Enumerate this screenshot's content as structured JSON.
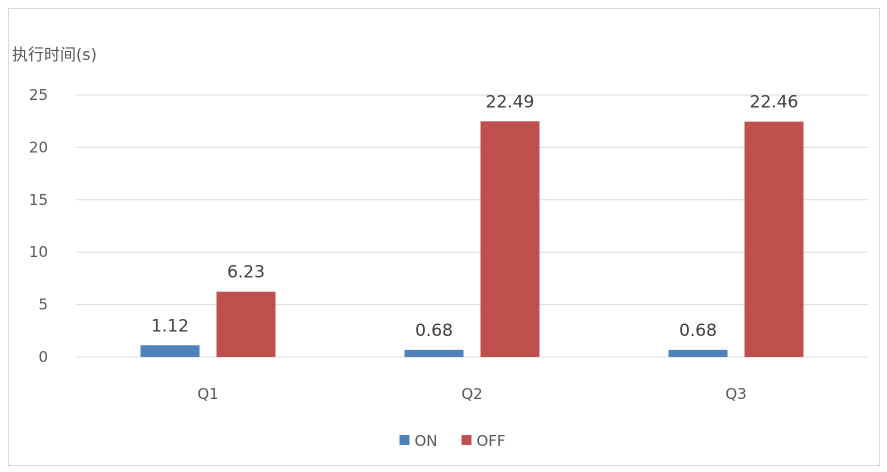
{
  "chart_data": {
    "type": "bar",
    "title": "",
    "ylabel": "执行时间(s)",
    "xlabel": "",
    "categories": [
      "Q1",
      "Q2",
      "Q3"
    ],
    "ylim": [
      0,
      25
    ],
    "yticks": [
      0,
      5,
      10,
      15,
      20,
      25
    ],
    "grid": true,
    "legend": "bottom-center",
    "series": [
      {
        "name": "ON",
        "values": [
          1.12,
          0.68,
          0.68
        ],
        "labels": [
          "1.12",
          "0.68",
          "0.68"
        ],
        "color": "#4f81bd"
      },
      {
        "name": "OFF",
        "values": [
          6.23,
          22.49,
          22.46
        ],
        "labels": [
          "6.23",
          "22.49",
          "22.46"
        ],
        "color": "#c0504d"
      }
    ]
  }
}
